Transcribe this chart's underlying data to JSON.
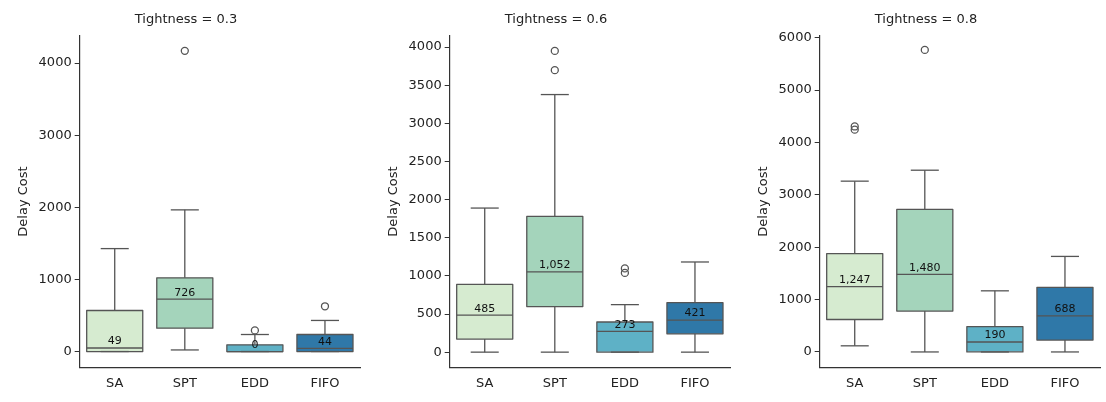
{
  "chart_data": [
    {
      "type": "box",
      "title": "Tightness = 0.3",
      "ylabel": "Delay Cost",
      "categories": [
        "SA",
        "SPT",
        "EDD",
        "FIFO"
      ],
      "colors": [
        "#d6ebd0",
        "#a4d4bb",
        "#5eb1c6",
        "#2f78a8"
      ],
      "boxes": [
        {
          "low": 0,
          "q1": 0,
          "median": 49,
          "q3": 569,
          "high": 1427
        },
        {
          "low": 22,
          "q1": 324,
          "median": 726,
          "q3": 1022,
          "high": 1964,
          "outliers": [
            4169
          ]
        },
        {
          "low": 0,
          "q1": 0,
          "median": 0,
          "q3": 93,
          "high": 236,
          "outliers": [
            293
          ]
        },
        {
          "low": 0,
          "q1": 0,
          "median": 44,
          "q3": 236,
          "high": 431,
          "outliers": [
            627
          ]
        }
      ],
      "value_labels": [
        "49",
        "726",
        "0",
        "44"
      ],
      "ylim": [
        -220,
        4380
      ],
      "yticks": [
        0,
        1000,
        2000,
        3000,
        4000
      ],
      "grid": false
    },
    {
      "type": "box",
      "title": "Tightness = 0.6",
      "ylabel": "Delay Cost",
      "categories": [
        "SA",
        "SPT",
        "EDD",
        "FIFO"
      ],
      "colors": [
        "#d6ebd0",
        "#a4d4bb",
        "#5eb1c6",
        "#2f78a8"
      ],
      "boxes": [
        {
          "low": 0,
          "q1": 172,
          "median": 485,
          "q3": 888,
          "high": 1889
        },
        {
          "low": 0,
          "q1": 597,
          "median": 1052,
          "q3": 1779,
          "high": 3377,
          "outliers": [
            3697,
            3949
          ]
        },
        {
          "low": 0,
          "q1": 0,
          "median": 273,
          "q3": 395,
          "high": 623,
          "outliers": [
            1039,
            1098
          ]
        },
        {
          "low": 0,
          "q1": 240,
          "median": 421,
          "q3": 648,
          "high": 1182
        }
      ],
      "value_labels": [
        "485",
        "1,052",
        "273",
        "421"
      ],
      "ylim": [
        -200,
        4150
      ],
      "yticks": [
        0,
        500,
        1000,
        1500,
        2000,
        2500,
        3000,
        3500,
        4000
      ],
      "grid": false
    },
    {
      "type": "box",
      "title": "Tightness = 0.8",
      "ylabel": "Delay Cost",
      "categories": [
        "SA",
        "SPT",
        "EDD",
        "FIFO"
      ],
      "colors": [
        "#d6ebd0",
        "#a4d4bb",
        "#5eb1c6",
        "#2f78a8"
      ],
      "boxes": [
        {
          "low": 117,
          "q1": 620,
          "median": 1247,
          "q3": 1879,
          "high": 3261,
          "outliers": [
            4244,
            4305
          ]
        },
        {
          "low": 0,
          "q1": 780,
          "median": 1480,
          "q3": 2721,
          "high": 3470,
          "outliers": [
            5767
          ]
        },
        {
          "low": 0,
          "q1": 0,
          "median": 190,
          "q3": 485,
          "high": 1167
        },
        {
          "low": 0,
          "q1": 227,
          "median": 688,
          "q3": 1234,
          "high": 1824
        }
      ],
      "value_labels": [
        "1,247",
        "1,480",
        "190",
        "688"
      ],
      "ylim": [
        -295,
        6040
      ],
      "yticks": [
        0,
        1000,
        2000,
        3000,
        4000,
        5000,
        6000
      ],
      "grid": false
    }
  ]
}
